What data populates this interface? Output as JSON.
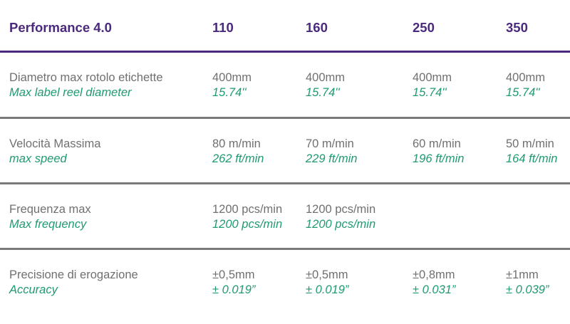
{
  "header": {
    "title": "Performance 4.0",
    "models": [
      "110",
      "160",
      "250",
      "350"
    ]
  },
  "rows": [
    {
      "label_it": "Diametro max rotolo etichette",
      "label_en": "Max label reel diameter",
      "values": [
        {
          "metric": "400mm",
          "imperial": "15.74''"
        },
        {
          "metric": "400mm",
          "imperial": "15.74''"
        },
        {
          "metric": "400mm",
          "imperial": "15.74''"
        },
        {
          "metric": "400mm",
          "imperial": "15.74''"
        }
      ]
    },
    {
      "label_it": "Velocità Massima",
      "label_en": "max speed",
      "values": [
        {
          "metric": "80 m/min",
          "imperial": "262 ft/min"
        },
        {
          "metric": "70 m/min",
          "imperial": "229 ft/min"
        },
        {
          "metric": "60 m/min",
          "imperial": "196 ft/min"
        },
        {
          "metric": "50 m/min",
          "imperial": "164 ft/min"
        }
      ]
    },
    {
      "label_it": "Frequenza max",
      "label_en": "Max frequency",
      "values": [
        {
          "metric": "1200 pcs/min",
          "imperial": "1200 pcs/min"
        },
        {
          "metric": "1200 pcs/min",
          "imperial": "1200 pcs/min"
        },
        {
          "metric": "",
          "imperial": ""
        },
        {
          "metric": "",
          "imperial": ""
        }
      ]
    },
    {
      "label_it": "Precisione di erogazione",
      "label_en": "Accuracy",
      "values": [
        {
          "metric": "±0,5mm",
          "imperial": "± 0.019”"
        },
        {
          "metric": "±0,5mm",
          "imperial": "± 0.019”"
        },
        {
          "metric": "±0,8mm",
          "imperial": "± 0.031”"
        },
        {
          "metric": "±1mm",
          "imperial": "± 0.039”"
        }
      ]
    }
  ],
  "colors": {
    "header_text": "#4b2a7e",
    "header_rule": "#4b2a7e",
    "label_text": "#707070",
    "imperial_text": "#1f9a73",
    "row_rule": "#7a7a7a"
  }
}
